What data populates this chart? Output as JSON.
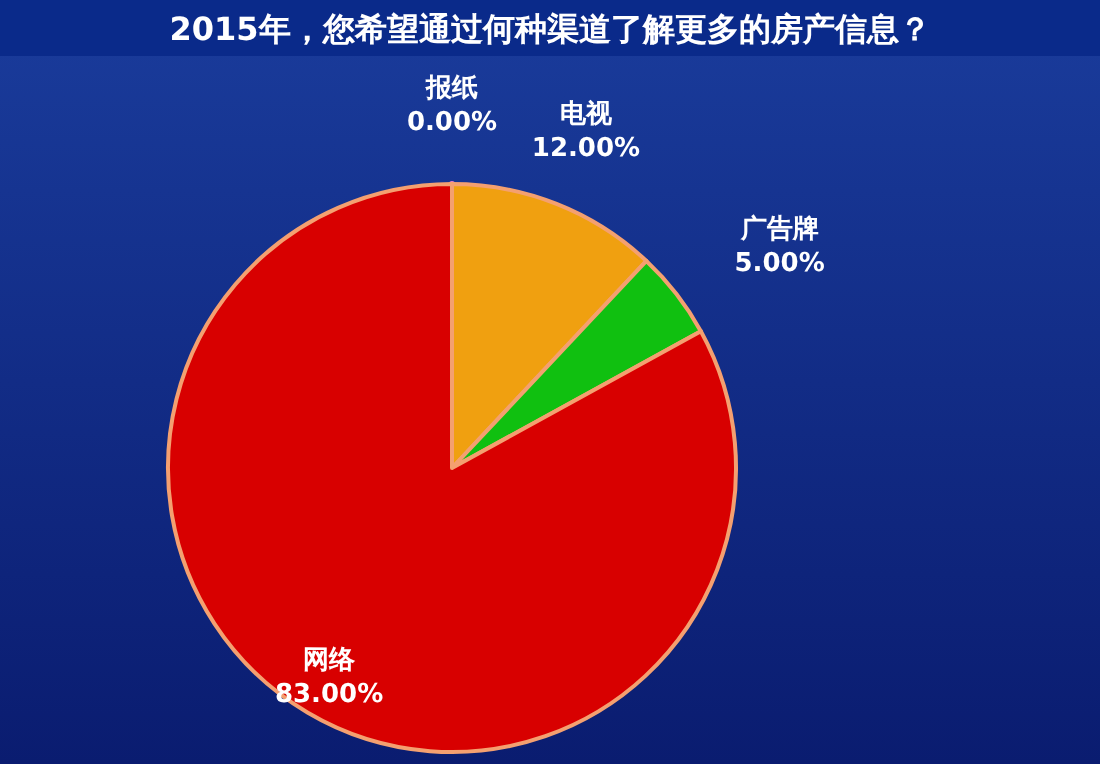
{
  "chart_data": {
    "type": "pie",
    "title": "2015年，您希望通过何种渠道了解更多的房产信息？",
    "categories": [
      "报纸",
      "电视",
      "广告牌",
      "网络"
    ],
    "values": [
      0,
      12,
      5,
      83
    ],
    "value_labels": [
      "0.00%",
      "12.00%",
      "5.00%",
      "83.00%"
    ],
    "colors": [
      "#f080c8",
      "#f0a010",
      "#10c010",
      "#d80000"
    ]
  }
}
